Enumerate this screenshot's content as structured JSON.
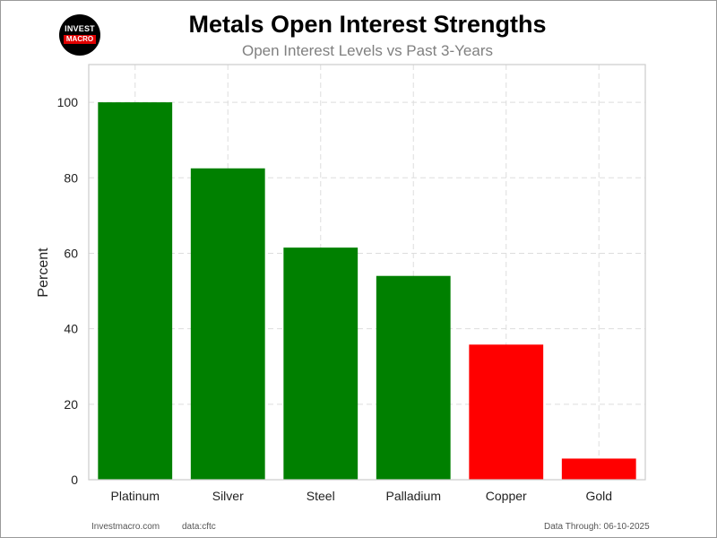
{
  "logo": {
    "line1": "INVEST",
    "line2": "MACRO"
  },
  "chart_data": {
    "type": "bar",
    "title": "Metals Open Interest Strengths",
    "subtitle": "Open Interest Levels vs Past 3-Years",
    "xlabel": "",
    "ylabel": "Percent",
    "categories": [
      "Platinum",
      "Silver",
      "Steel",
      "Palladium",
      "Copper",
      "Gold"
    ],
    "values": [
      100,
      82.5,
      61.5,
      54,
      35.8,
      5.6
    ],
    "bar_colors": [
      "#008000",
      "#008000",
      "#008000",
      "#008000",
      "#ff0000",
      "#ff0000"
    ],
    "ylim": [
      0,
      110
    ],
    "yticks": [
      0,
      20,
      40,
      60,
      80,
      100
    ],
    "grid": true,
    "legend": "none"
  },
  "footer": {
    "site": "Investmacro.com",
    "source": "data:cftc",
    "date": "Data Through: 06-10-2025"
  }
}
